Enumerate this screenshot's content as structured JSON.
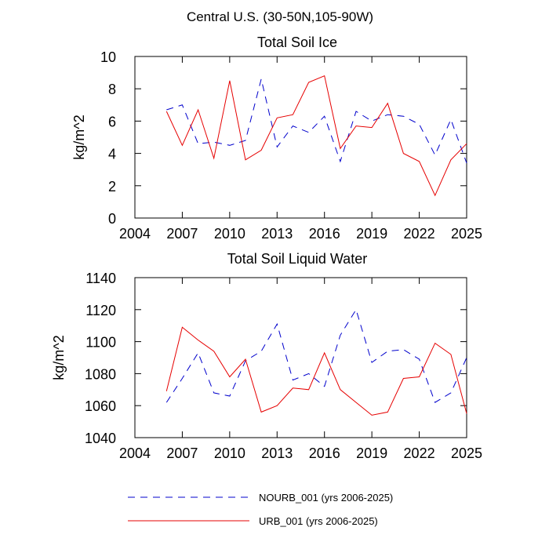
{
  "figure_title": "Central U.S. (30-50N,105-90W)",
  "legend": [
    {
      "label": "NOURB_001 (yrs 2006-2025)",
      "color": "#0000cc",
      "style": "dashed"
    },
    {
      "label": "URB_001 (yrs 2006-2025)",
      "color": "#e60000",
      "style": "solid"
    }
  ],
  "chart_data": [
    {
      "type": "line",
      "title": "Total Soil Ice",
      "xlabel": "",
      "ylabel": "kg/m^2",
      "xlim": [
        2004,
        2025
      ],
      "ylim": [
        0,
        10
      ],
      "xticks": [
        2004,
        2007,
        2010,
        2013,
        2016,
        2019,
        2022,
        2025
      ],
      "xtick_labels": [
        "2004",
        "2007",
        "2010",
        "2013",
        "2016",
        "2019",
        "2022",
        "2025"
      ],
      "yticks": [
        0,
        2,
        4,
        6,
        8,
        10
      ],
      "ytick_labels": [
        "0",
        "2",
        "4",
        "6",
        "8",
        "10"
      ],
      "x": [
        2006,
        2007,
        2008,
        2009,
        2010,
        2011,
        2012,
        2013,
        2014,
        2015,
        2016,
        2017,
        2018,
        2019,
        2020,
        2021,
        2022,
        2023,
        2024,
        2025
      ],
      "series": [
        {
          "name": "NOURB_001 (yrs 2006-2025)",
          "color": "#0000cc",
          "style": "dashed",
          "values": [
            6.7,
            7.0,
            4.6,
            4.7,
            4.5,
            4.8,
            8.6,
            4.4,
            5.7,
            5.3,
            6.3,
            3.5,
            6.6,
            6.0,
            6.4,
            6.3,
            5.8,
            3.9,
            6.1,
            3.4
          ]
        },
        {
          "name": "URB_001 (yrs 2006-2025)",
          "color": "#e60000",
          "style": "solid",
          "values": [
            6.6,
            4.5,
            6.7,
            3.7,
            8.5,
            3.6,
            4.2,
            6.2,
            6.4,
            8.4,
            8.8,
            4.3,
            5.7,
            5.6,
            7.1,
            4.0,
            3.5,
            1.4,
            3.6,
            4.6
          ]
        }
      ]
    },
    {
      "type": "line",
      "title": "Total Soil Liquid Water",
      "xlabel": "",
      "ylabel": "kg/m^2",
      "xlim": [
        2004,
        2025
      ],
      "ylim": [
        1040,
        1140
      ],
      "xticks": [
        2004,
        2007,
        2010,
        2013,
        2016,
        2019,
        2022,
        2025
      ],
      "xtick_labels": [
        "2004",
        "2007",
        "2010",
        "2013",
        "2016",
        "2019",
        "2022",
        "2025"
      ],
      "yticks": [
        1040,
        1060,
        1080,
        1100,
        1120,
        1140
      ],
      "ytick_labels": [
        "1040",
        "1060",
        "1080",
        "1100",
        "1120",
        "1140"
      ],
      "x": [
        2006,
        2007,
        2008,
        2009,
        2010,
        2011,
        2012,
        2013,
        2014,
        2015,
        2016,
        2017,
        2018,
        2019,
        2020,
        2021,
        2022,
        2023,
        2024,
        2025
      ],
      "series": [
        {
          "name": "NOURB_001 (yrs 2006-2025)",
          "color": "#0000cc",
          "style": "dashed",
          "values": [
            1062,
            1077,
            1093,
            1068,
            1066,
            1088,
            1094,
            1111,
            1076,
            1080,
            1072,
            1104,
            1120,
            1087,
            1094,
            1095,
            1089,
            1062,
            1068,
            1090
          ]
        },
        {
          "name": "URB_001 (yrs 2006-2025)",
          "color": "#e60000",
          "style": "solid",
          "values": [
            1069,
            1109,
            1101,
            1094,
            1078,
            1089,
            1056,
            1060,
            1071,
            1070,
            1093,
            1070,
            1062,
            1054,
            1056,
            1077,
            1078,
            1099,
            1092,
            1055
          ]
        }
      ]
    }
  ]
}
